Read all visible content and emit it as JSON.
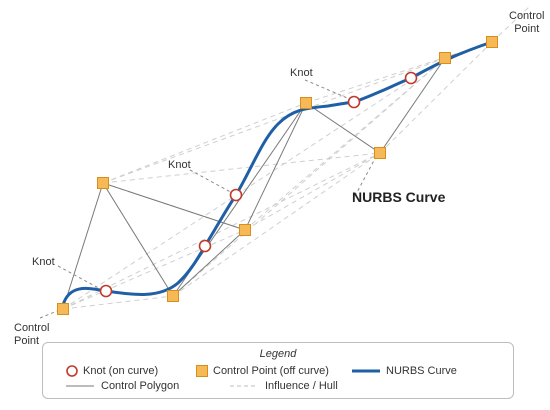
{
  "colors": {
    "curve": "#1f5fa6",
    "knot_stroke": "#c0392b",
    "knot_fill": "#ffffff",
    "control_fill": "#f5b957",
    "control_stroke": "#d98e1a",
    "polygon": "#7a7a7a",
    "hull": "#c8c8c8",
    "leader": "#8a8a8a"
  },
  "labels": {
    "control_point_top": [
      "Control",
      "Point"
    ],
    "control_point_bottom": [
      "Control",
      "Point"
    ],
    "knot_top": "Knot",
    "knot_middle": "Knot",
    "knot_left": "Knot",
    "curve_title": "NURBS Curve"
  },
  "legend": {
    "title": "Legend",
    "knot": "Knot (on curve)",
    "control_point": "Control Point (off curve)",
    "curve": "NURBS Curve",
    "polygon": "Control Polygon",
    "hull": "Influence / Hull"
  }
}
